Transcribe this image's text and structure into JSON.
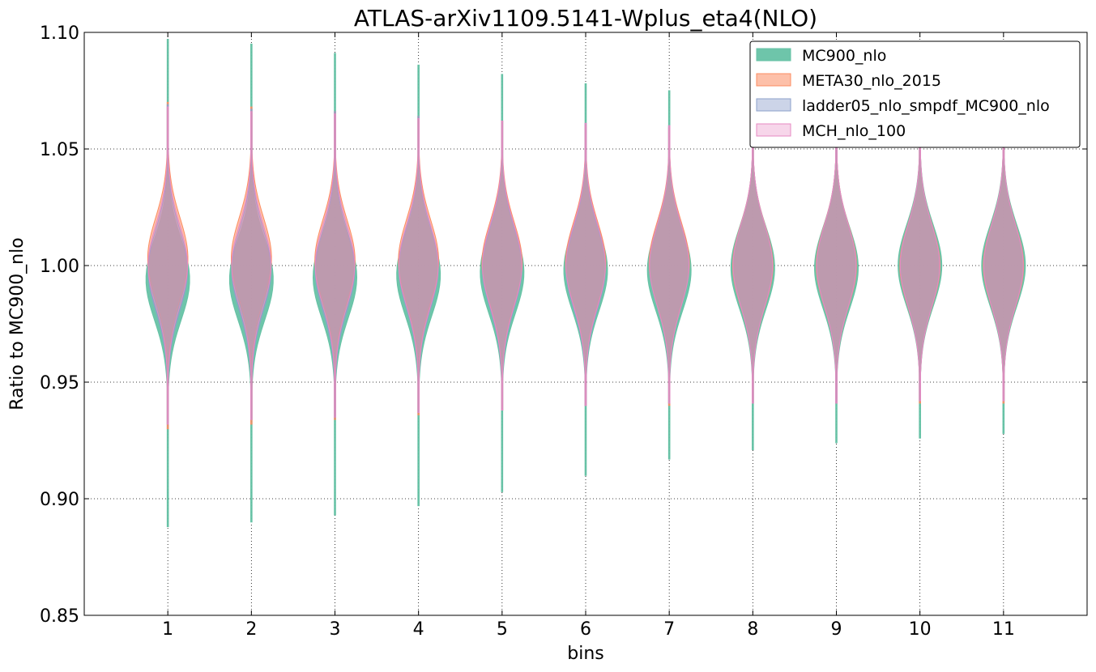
{
  "chart_data": {
    "type": "violin",
    "title": "ATLAS-arXiv1109.5141-Wplus_eta4(NLO)",
    "xlabel": "bins",
    "ylabel": "Ratio to MC900_nlo",
    "ylim": [
      0.85,
      1.1
    ],
    "xlim": [
      0,
      12
    ],
    "yticks": [
      0.85,
      0.9,
      0.95,
      1.0,
      1.05,
      1.1
    ],
    "ytick_labels": [
      "0.85",
      "0.90",
      "0.95",
      "1.00",
      "1.05",
      "1.10"
    ],
    "categories": [
      "1",
      "2",
      "3",
      "4",
      "5",
      "6",
      "7",
      "8",
      "9",
      "10",
      "11"
    ],
    "grid": true,
    "legend_position": "top-right",
    "series": [
      {
        "name": "MC900_nlo",
        "fill": "#66c2a5",
        "stroke": "#66c2a5",
        "center": [
          0.994,
          0.994,
          0.995,
          0.996,
          0.997,
          0.998,
          0.998,
          0.999,
          0.999,
          1.0,
          1.0
        ],
        "min": [
          0.888,
          0.89,
          0.893,
          0.897,
          0.903,
          0.91,
          0.917,
          0.921,
          0.924,
          0.926,
          0.928
        ],
        "max": [
          1.097,
          1.095,
          1.091,
          1.086,
          1.082,
          1.078,
          1.075,
          1.071,
          1.068,
          1.066,
          1.064
        ]
      },
      {
        "name": "META30_nlo_2015",
        "fill": "#fc8d62",
        "stroke": "#fc8d62",
        "center": [
          1.003,
          1.003,
          1.002,
          1.002,
          1.001,
          1.001,
          1.001,
          1.0,
          1.0,
          1.0,
          1.0
        ],
        "min": [
          0.93,
          0.932,
          0.934,
          0.936,
          0.938,
          0.94,
          0.94,
          0.941,
          0.941,
          0.941,
          0.941
        ],
        "max": [
          1.07,
          1.068,
          1.066,
          1.064,
          1.062,
          1.06,
          1.059,
          1.058,
          1.057,
          1.057,
          1.057
        ]
      },
      {
        "name": "ladder05_nlo_smpdf_MC900_nlo",
        "fill": "#8da0cb",
        "stroke": "#8da0cb",
        "center": [
          0.998,
          0.998,
          0.998,
          0.999,
          0.999,
          0.999,
          1.0,
          1.0,
          1.0,
          1.0,
          1.0
        ],
        "min": [
          0.932,
          0.934,
          0.935,
          0.937,
          0.938,
          0.94,
          0.941,
          0.941,
          0.941,
          0.942,
          0.942
        ],
        "max": [
          1.069,
          1.067,
          1.066,
          1.064,
          1.062,
          1.061,
          1.06,
          1.059,
          1.058,
          1.058,
          1.058
        ]
      },
      {
        "name": "MCH_nlo_100",
        "fill": "#e78ac3",
        "stroke": "#e78ac3",
        "center": [
          1.0,
          1.0,
          1.0,
          1.0,
          1.0,
          1.0,
          1.0,
          1.0,
          1.0,
          1.0,
          1.0
        ],
        "min": [
          0.932,
          0.934,
          0.935,
          0.937,
          0.938,
          0.94,
          0.941,
          0.941,
          0.941,
          0.942,
          0.942
        ],
        "max": [
          1.068,
          1.066,
          1.065,
          1.063,
          1.062,
          1.061,
          1.06,
          1.059,
          1.058,
          1.058,
          1.058
        ]
      }
    ]
  }
}
